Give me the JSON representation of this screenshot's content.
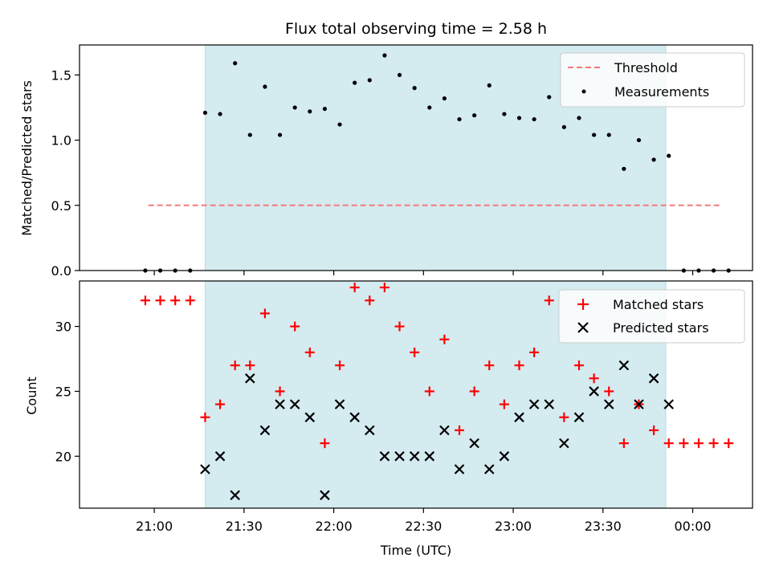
{
  "chart_data": [
    {
      "type": "scatter",
      "title": "Flux total observing time = 2.58 h",
      "xlabel": "",
      "ylabel": "Matched/Predicted stars",
      "x_unit": "time (UTC, hours since 21:00)",
      "ylim": [
        0,
        1.73
      ],
      "yticks": [
        "0.0",
        "0.5",
        "1.0",
        "1.5"
      ],
      "ytick_values": [
        0,
        0.5,
        1.0,
        1.5
      ],
      "legend_position": "top-right",
      "shaded_interval": [
        "21:17",
        "23:51"
      ],
      "shade_color": "#d4ebf0",
      "series": [
        {
          "name": "Threshold",
          "style": "dashed-line",
          "color": "#f47a7a",
          "x": [
            "20:58",
            "00:09"
          ],
          "values": [
            0.5,
            0.5
          ]
        },
        {
          "name": "Measurements",
          "style": "dot",
          "color": "#000000",
          "x": [
            "20:57",
            "21:02",
            "21:07",
            "21:12",
            "21:17",
            "21:22",
            "21:27",
            "21:32",
            "21:37",
            "21:42",
            "21:47",
            "21:52",
            "21:57",
            "22:02",
            "22:07",
            "22:12",
            "22:17",
            "22:22",
            "22:27",
            "22:32",
            "22:37",
            "22:42",
            "22:47",
            "22:52",
            "22:57",
            "23:02",
            "23:07",
            "23:12",
            "23:17",
            "23:22",
            "23:27",
            "23:32",
            "23:37",
            "23:42",
            "23:47",
            "23:52",
            "23:57",
            "00:02",
            "00:07",
            "00:12"
          ],
          "values": [
            0,
            0,
            0,
            0,
            1.21,
            1.2,
            1.59,
            1.04,
            1.41,
            1.04,
            1.25,
            1.22,
            1.24,
            1.12,
            1.44,
            1.46,
            1.65,
            1.5,
            1.4,
            1.25,
            1.32,
            1.16,
            1.19,
            1.42,
            1.2,
            1.17,
            1.16,
            1.33,
            1.1,
            1.17,
            1.04,
            1.04,
            0.78,
            1.0,
            0.85,
            0.88,
            0,
            0,
            0,
            0
          ]
        }
      ]
    },
    {
      "type": "scatter",
      "title": "",
      "xlabel": "Time (UTC)",
      "ylabel": "Count",
      "xticks": [
        "21:00",
        "21:30",
        "22:00",
        "22:30",
        "23:00",
        "23:30",
        "00:00"
      ],
      "ylim": [
        16,
        33.5
      ],
      "yticks": [
        "20",
        "25",
        "30"
      ],
      "ytick_values": [
        20,
        25,
        30
      ],
      "legend_position": "top-right",
      "shaded_interval": [
        "21:17",
        "23:51"
      ],
      "shade_color": "#d4ebf0",
      "series": [
        {
          "name": "Matched stars",
          "style": "plus",
          "color": "#ff0000",
          "x": [
            "20:57",
            "21:02",
            "21:07",
            "21:12",
            "21:17",
            "21:22",
            "21:27",
            "21:32",
            "21:37",
            "21:42",
            "21:47",
            "21:52",
            "21:57",
            "22:02",
            "22:07",
            "22:12",
            "22:17",
            "22:22",
            "22:27",
            "22:32",
            "22:37",
            "22:42",
            "22:47",
            "22:52",
            "22:57",
            "23:02",
            "23:07",
            "23:12",
            "23:17",
            "23:22",
            "23:27",
            "23:32",
            "23:37",
            "23:42",
            "23:47",
            "23:52",
            "23:57",
            "00:02",
            "00:07",
            "00:12"
          ],
          "values": [
            32,
            32,
            32,
            32,
            23,
            24,
            27,
            27,
            31,
            25,
            30,
            28,
            21,
            27,
            33,
            32,
            33,
            30,
            28,
            25,
            29,
            22,
            25,
            27,
            24,
            27,
            28,
            32,
            23,
            27,
            26,
            25,
            21,
            24,
            22,
            21,
            21,
            21,
            21,
            21
          ]
        },
        {
          "name": "Predicted stars",
          "style": "x",
          "color": "#000000",
          "x": [
            "21:17",
            "21:22",
            "21:27",
            "21:32",
            "21:37",
            "21:42",
            "21:47",
            "21:52",
            "21:57",
            "22:02",
            "22:07",
            "22:12",
            "22:17",
            "22:22",
            "22:27",
            "22:32",
            "22:37",
            "22:42",
            "22:47",
            "22:52",
            "22:57",
            "23:02",
            "23:07",
            "23:12",
            "23:17",
            "23:22",
            "23:27",
            "23:32",
            "23:37",
            "23:42",
            "23:47",
            "23:52"
          ],
          "values": [
            19,
            20,
            17,
            26,
            22,
            24,
            24,
            23,
            17,
            24,
            23,
            22,
            20,
            20,
            20,
            20,
            22,
            19,
            21,
            19,
            20,
            23,
            24,
            24,
            21,
            23,
            25,
            24,
            27,
            24,
            26,
            24
          ]
        }
      ]
    }
  ]
}
